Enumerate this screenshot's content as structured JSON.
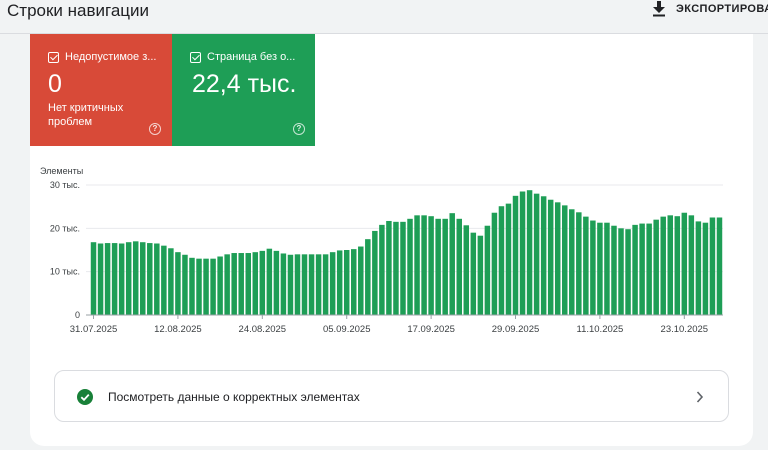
{
  "header": {
    "title": "Строки навигации",
    "export_label": "ЭКСПОРТИРОВА"
  },
  "tiles": {
    "invalid": {
      "label": "Недопустимое з...",
      "value": "0",
      "subtitle": "Нет критичных проблем",
      "color": "#d84a38"
    },
    "valid": {
      "label": "Страница без о...",
      "value": "22,4 тыс.",
      "color": "#1e9e56"
    }
  },
  "chart_data": {
    "type": "bar",
    "ylabel": "Элементы",
    "ylim": [
      0,
      30000
    ],
    "yticks": [
      "0",
      "10 тыс.",
      "20 тыс.",
      "30 тыс."
    ],
    "ytick_values": [
      0,
      10000,
      20000,
      30000
    ],
    "xtick_labels": [
      "31.07.2025",
      "12.08.2025",
      "24.08.2025",
      "05.09.2025",
      "17.09.2025",
      "29.09.2025",
      "11.10.2025",
      "23.10.2025"
    ],
    "xtick_indices": [
      0,
      12,
      24,
      36,
      48,
      60,
      72,
      84
    ],
    "grid": true,
    "bar_color": "#1e9e56",
    "values": [
      16800,
      16500,
      16600,
      16600,
      16500,
      16800,
      17000,
      16800,
      16600,
      16500,
      16000,
      15400,
      14500,
      13900,
      13200,
      13000,
      13000,
      13000,
      13500,
      14000,
      14300,
      14300,
      14300,
      14500,
      14800,
      15300,
      14800,
      14200,
      13900,
      14000,
      14000,
      14000,
      14000,
      14000,
      14500,
      14900,
      15000,
      15200,
      15800,
      17500,
      19400,
      20800,
      21700,
      21500,
      21500,
      22200,
      23000,
      23000,
      22800,
      22200,
      22200,
      23500,
      22200,
      20700,
      19000,
      18300,
      20600,
      23600,
      25100,
      25700,
      27500,
      28500,
      28800,
      28000,
      27400,
      26600,
      26000,
      25300,
      24400,
      23700,
      22700,
      21800,
      21300,
      21300,
      20600,
      20000,
      19800,
      20800,
      21100,
      21100,
      22000,
      22700,
      23000,
      22800,
      23600,
      23000,
      21600,
      21300,
      22500,
      22500
    ]
  },
  "link_card": {
    "text": "Посмотреть данные о корректных элементах"
  }
}
